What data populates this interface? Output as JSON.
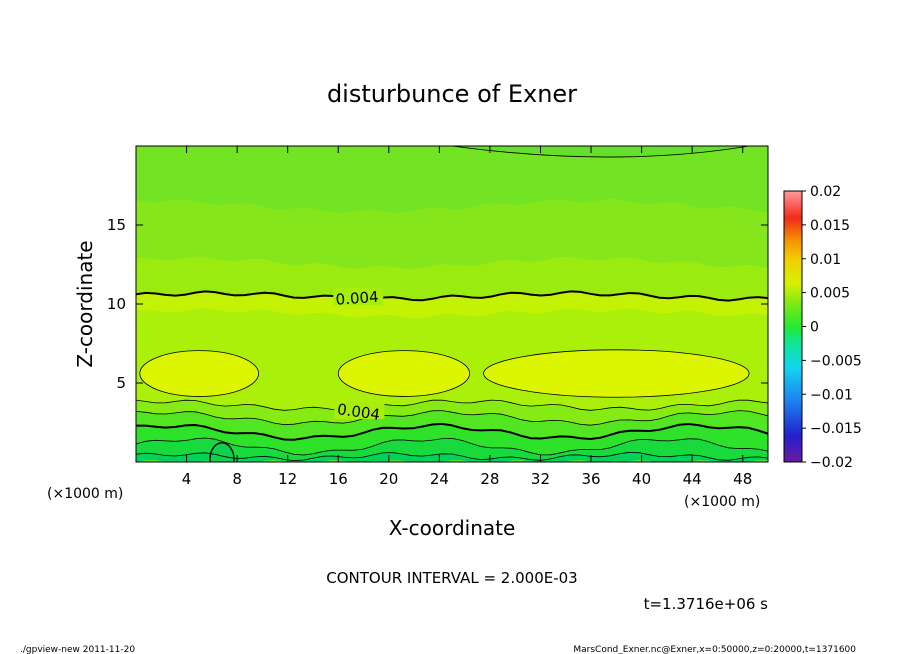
{
  "chart_data": {
    "type": "heatmap",
    "title": "disturbunce of Exner",
    "xlabel": "X-coordinate",
    "ylabel": "Z-coordinate",
    "x_unit": "(×1000 m)",
    "y_unit": "(×1000 m)",
    "xlim": [
      0,
      50
    ],
    "ylim": [
      0,
      20
    ],
    "x_ticks": [
      4,
      8,
      12,
      16,
      20,
      24,
      28,
      32,
      36,
      40,
      44,
      48
    ],
    "y_ticks": [
      5,
      10,
      15
    ],
    "colorbar": {
      "min": -0.02,
      "max": 0.02,
      "tick_values": [
        0.02,
        0.015,
        0.01,
        0.005,
        0,
        -0.005,
        -0.01,
        -0.015,
        -0.02
      ],
      "tick_labels": [
        "0.02",
        "0.015",
        "0.01",
        "0.005",
        "0",
        "−0.005",
        "−0.01",
        "−0.015",
        "−0.02"
      ]
    },
    "contour_labels": [
      {
        "text": "0.004",
        "x": 17.5,
        "z": 10.3
      },
      {
        "text": "0.004",
        "x": 17.6,
        "z": 3.1
      }
    ],
    "contour_interval_text": "CONTOUR INTERVAL = 2.000E-03",
    "time_text": "t=1.3716e+06 s",
    "footer_left": "./gpview-new   2011-11-20",
    "footer_right": "MarsCond_Exner.nc@Exner,x=0:50000,z=0:20000,t=1371600"
  }
}
